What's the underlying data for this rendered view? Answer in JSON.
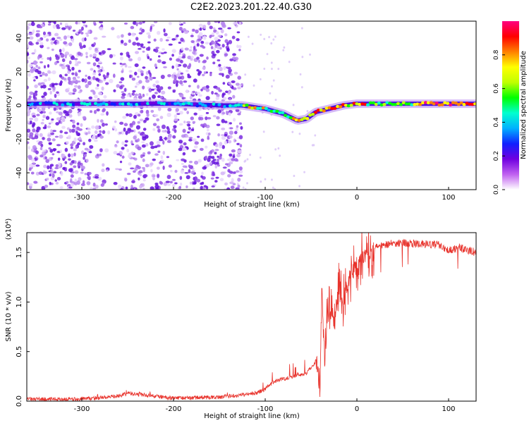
{
  "title": "C2E2.2023.201.22.40.G30",
  "colors": {
    "snr_line": "#e8332c",
    "spectrogram_background_dots": "#8a2be2",
    "axis": "#000000"
  },
  "chart_data": [
    {
      "type": "heatmap",
      "xlabel": "Height of straight line (km)",
      "ylabel": "Frequency (Hz)",
      "xlim": [
        -360,
        130
      ],
      "ylim": [
        -50,
        50
      ],
      "xticks": [
        -300,
        -200,
        -100,
        0,
        100
      ],
      "yticks": [
        -40,
        -20,
        0,
        20,
        40
      ],
      "colorbar": {
        "label": "Normalized spectral amplitude",
        "range": [
          0,
          1
        ],
        "ticks": [
          "0.0",
          "0.2",
          "0.4",
          "0.6",
          "0.8"
        ],
        "colormap": [
          "#ffffff",
          "#c060f0",
          "#7000e0",
          "#1020ff",
          "#00b0ff",
          "#00ffd0",
          "#00ff00",
          "#c0ff00",
          "#ffff00",
          "#ff8000",
          "#ff0000",
          "#ff0080"
        ]
      },
      "noise_region": {
        "x": [
          -360,
          -125
        ],
        "freq": [
          -50,
          50
        ]
      },
      "ridge": {
        "x": [
          -360,
          -300,
          -250,
          -200,
          -150,
          -125,
          -100,
          -80,
          -65,
          -55,
          -45,
          -30,
          -15,
          0,
          30,
          60,
          90,
          130
        ],
        "freq": [
          1,
          1,
          1,
          1,
          0,
          0,
          -2,
          -5,
          -9,
          -8,
          -4,
          -2,
          0,
          1,
          1,
          1,
          1,
          1
        ]
      }
    },
    {
      "type": "line",
      "xlabel": "Height of straight line (km)",
      "ylabel": "SNR (10 * v/v)",
      "y_multiplier": "(x10⁴)",
      "xlim": [
        -360,
        130
      ],
      "ylim": [
        0,
        1.7
      ],
      "xticks": [
        -300,
        -200,
        -100,
        0,
        100
      ],
      "yticks": [
        "0.0",
        "0.5",
        "1.0",
        "1.5"
      ],
      "series": [
        {
          "x": [
            -360,
            -300,
            -260,
            -250,
            -200,
            -150,
            -110,
            -100,
            -90,
            -70,
            -55,
            -45,
            -40,
            -38,
            -35,
            -30,
            -25,
            -20,
            -15,
            -10,
            -5,
            0,
            10,
            20,
            30,
            50,
            70,
            90,
            100,
            110,
            130
          ],
          "values": [
            0.02,
            0.02,
            0.05,
            0.08,
            0.03,
            0.04,
            0.08,
            0.12,
            0.2,
            0.25,
            0.28,
            0.4,
            0.3,
            1.0,
            0.6,
            0.9,
            0.8,
            1.1,
            1.0,
            1.2,
            1.3,
            1.4,
            1.5,
            1.55,
            1.58,
            1.6,
            1.58,
            1.58,
            1.52,
            1.55,
            1.5
          ]
        }
      ]
    }
  ]
}
